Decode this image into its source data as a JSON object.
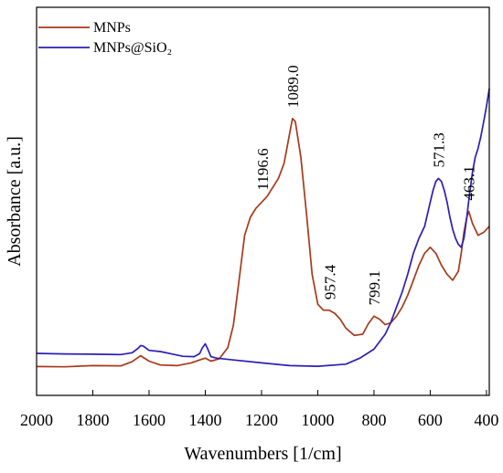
{
  "chart_data": {
    "type": "line",
    "xlabel": "Wavenumbers [1/cm]",
    "ylabel": "Absorbance [a.u.]",
    "xlim": [
      2000,
      390
    ],
    "x_reversed": true,
    "ylim": [
      0,
      1.0
    ],
    "y_ticks_visible": false,
    "grid": false,
    "legend_position": "top-left",
    "xticks": [
      {
        "value": 2000,
        "label": "2000"
      },
      {
        "value": 1800,
        "label": "1800"
      },
      {
        "value": 1600,
        "label": "1600"
      },
      {
        "value": 1400,
        "label": "1400"
      },
      {
        "value": 1200,
        "label": "1200"
      },
      {
        "value": 1000,
        "label": "1000"
      },
      {
        "value": 800,
        "label": "800"
      },
      {
        "value": 600,
        "label": "600"
      },
      {
        "value": 400,
        "label": "400"
      }
    ],
    "series": [
      {
        "name": "MNPs",
        "color": "#a8391a",
        "x": [
          2000,
          1900,
          1800,
          1700,
          1660,
          1630,
          1600,
          1560,
          1500,
          1450,
          1420,
          1400,
          1380,
          1350,
          1320,
          1300,
          1280,
          1260,
          1240,
          1220,
          1200,
          1180,
          1160,
          1140,
          1120,
          1100,
          1090,
          1080,
          1060,
          1040,
          1020,
          1000,
          980,
          960,
          940,
          920,
          900,
          870,
          840,
          820,
          800,
          780,
          760,
          740,
          720,
          700,
          680,
          660,
          640,
          620,
          600,
          580,
          560,
          540,
          520,
          500,
          490,
          480,
          470,
          463,
          450,
          430,
          410,
          390
        ],
        "y": [
          0.072,
          0.071,
          0.075,
          0.074,
          0.088,
          0.108,
          0.09,
          0.077,
          0.075,
          0.084,
          0.094,
          0.1,
          0.09,
          0.098,
          0.135,
          0.21,
          0.36,
          0.51,
          0.57,
          0.6,
          0.62,
          0.64,
          0.67,
          0.7,
          0.75,
          0.85,
          0.9,
          0.89,
          0.77,
          0.58,
          0.38,
          0.28,
          0.26,
          0.26,
          0.25,
          0.23,
          0.2,
          0.176,
          0.18,
          0.215,
          0.24,
          0.23,
          0.212,
          0.218,
          0.24,
          0.27,
          0.31,
          0.36,
          0.41,
          0.45,
          0.47,
          0.45,
          0.41,
          0.38,
          0.36,
          0.39,
          0.45,
          0.52,
          0.57,
          0.59,
          0.55,
          0.51,
          0.52,
          0.54
        ]
      },
      {
        "name": "MNPs@SiO₂",
        "color": "#2b1fb5",
        "x": [
          2000,
          1900,
          1800,
          1700,
          1660,
          1640,
          1630,
          1620,
          1600,
          1560,
          1520,
          1480,
          1440,
          1420,
          1410,
          1400,
          1390,
          1380,
          1360,
          1300,
          1200,
          1100,
          1000,
          900,
          850,
          800,
          760,
          740,
          720,
          700,
          680,
          660,
          640,
          620,
          600,
          590,
          580,
          571,
          560,
          550,
          540,
          530,
          520,
          510,
          500,
          490,
          480,
          470,
          460,
          450,
          440,
          430,
          420,
          410,
          400,
          390
        ],
        "y": [
          0.116,
          0.114,
          0.113,
          0.112,
          0.118,
          0.132,
          0.142,
          0.14,
          0.126,
          0.122,
          0.114,
          0.106,
          0.105,
          0.115,
          0.135,
          0.148,
          0.128,
          0.105,
          0.1,
          0.094,
          0.084,
          0.075,
          0.073,
          0.08,
          0.1,
          0.13,
          0.18,
          0.22,
          0.27,
          0.32,
          0.38,
          0.45,
          0.5,
          0.54,
          0.62,
          0.66,
          0.69,
          0.7,
          0.69,
          0.66,
          0.62,
          0.57,
          0.53,
          0.5,
          0.48,
          0.47,
          0.5,
          0.57,
          0.65,
          0.72,
          0.77,
          0.8,
          0.84,
          0.89,
          0.94,
          1.0
        ]
      }
    ],
    "annotations": [
      {
        "text": "1196.6",
        "x": 1196.6,
        "series": 0
      },
      {
        "text": "1089.0",
        "x": 1089.0,
        "series": 0
      },
      {
        "text": "957.4",
        "x": 957.4,
        "series": 0
      },
      {
        "text": "799.1",
        "x": 799.1,
        "series": 0
      },
      {
        "text": "571.3",
        "x": 571.3,
        "series": 1
      },
      {
        "text": "463.1",
        "x": 463.1,
        "series": 0
      }
    ]
  }
}
